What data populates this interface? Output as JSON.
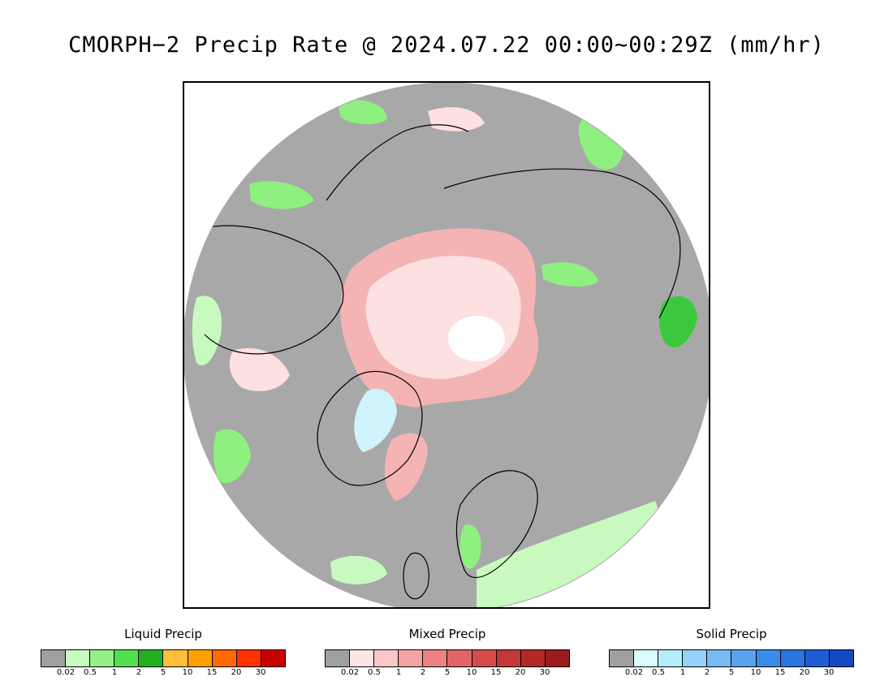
{
  "title": "CMORPH−2 Precip Rate @ 2024.07.22 00:00~00:29Z (mm/hr)",
  "map": {
    "projection": "north-polar-stereographic",
    "colors": {
      "background": "#ffffff",
      "no_precip": "#a8a8a8",
      "liquid_light": "#c8fac0",
      "liquid_mid": "#8ef07e",
      "liquid_dark": "#3cc83c",
      "mixed_light": "#fde0e0",
      "mixed_mid": "#f4b4b4",
      "solid_light": "#d0f4fc",
      "pole_hole": "#ffffff",
      "coast": "#000000"
    }
  },
  "legends": [
    {
      "title": "Liquid Precip",
      "labels": [
        "0.02",
        "0.5",
        "1",
        "2",
        "5",
        "10",
        "15",
        "20",
        "30"
      ],
      "colors": [
        "#a0a0a0",
        "#c8fac0",
        "#96f088",
        "#50e050",
        "#20b020",
        "#ffbe3c",
        "#ffa000",
        "#ff6a00",
        "#ff3200",
        "#c80000"
      ]
    },
    {
      "title": "Mixed Precip",
      "labels": [
        "0.02",
        "0.5",
        "1",
        "2",
        "5",
        "10",
        "15",
        "20",
        "30"
      ],
      "colors": [
        "#a0a0a0",
        "#fde6e6",
        "#fbc8c8",
        "#f4a4a4",
        "#ec8282",
        "#e06464",
        "#d44c4c",
        "#c43838",
        "#b02828",
        "#9c1c1c"
      ]
    },
    {
      "title": "Solid Precip",
      "labels": [
        "0.02",
        "0.5",
        "1",
        "2",
        "5",
        "10",
        "15",
        "20",
        "30"
      ],
      "colors": [
        "#a0a0a0",
        "#dcfcfc",
        "#b4eefa",
        "#96d2f8",
        "#78baf4",
        "#5aa2f0",
        "#3c8ae8",
        "#2a74e0",
        "#1e5ed4",
        "#1448c0"
      ]
    }
  ]
}
